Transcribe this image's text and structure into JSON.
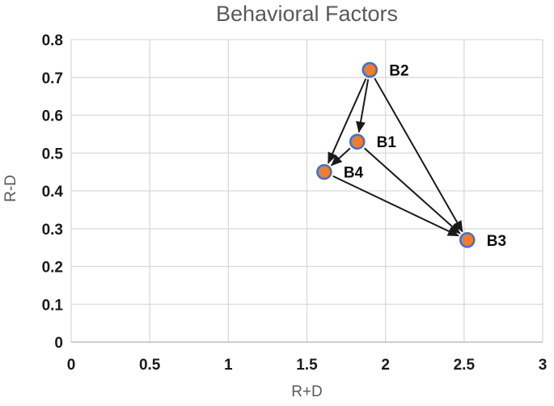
{
  "chart_data": {
    "type": "scatter",
    "title": "Behavioral Factors",
    "xlabel": "R+D",
    "ylabel": "R-D",
    "xlim": [
      0,
      3
    ],
    "ylim": [
      0,
      0.8
    ],
    "xticks": [
      0,
      0.5,
      1,
      1.5,
      2,
      2.5,
      3
    ],
    "xtick_labels": [
      "0",
      "0.5",
      "1",
      "1.5",
      "2",
      "2.5",
      "3"
    ],
    "yticks": [
      0,
      0.1,
      0.2,
      0.3,
      0.4,
      0.5,
      0.6,
      0.7,
      0.8
    ],
    "ytick_labels": [
      "0",
      "0.1",
      "0.2",
      "0.3",
      "0.4",
      "0.5",
      "0.6",
      "0.7",
      "0.8"
    ],
    "grid": true,
    "legend": "none",
    "points": [
      {
        "label": "B1",
        "x": 1.82,
        "y": 0.53
      },
      {
        "label": "B2",
        "x": 1.9,
        "y": 0.72
      },
      {
        "label": "B3",
        "x": 2.52,
        "y": 0.27
      },
      {
        "label": "B4",
        "x": 1.61,
        "y": 0.45
      }
    ],
    "arrows": [
      {
        "from": "B2",
        "to": "B1"
      },
      {
        "from": "B2",
        "to": "B4"
      },
      {
        "from": "B2",
        "to": "B3"
      },
      {
        "from": "B1",
        "to": "B4"
      },
      {
        "from": "B1",
        "to": "B3"
      },
      {
        "from": "B4",
        "to": "B3"
      }
    ],
    "colors": {
      "marker_fill": "#ED7D31",
      "marker_stroke": "#4472C4",
      "gridline": "#D9D9D9",
      "axis_line": "#BFBFBF",
      "arrow": "#1a1a1a",
      "title_text": "#595959",
      "tick_text": "#1a1a1a"
    }
  }
}
